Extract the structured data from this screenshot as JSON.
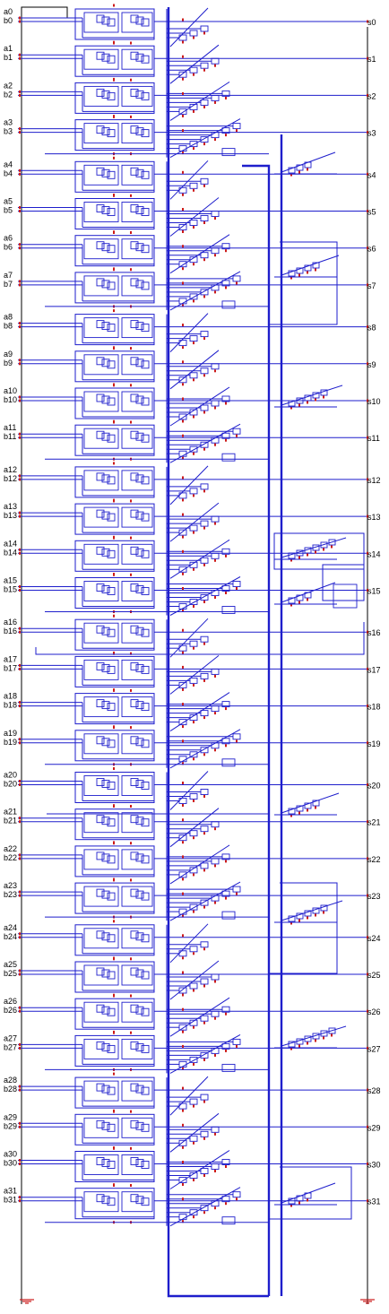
{
  "diagram": {
    "inputs_a": [
      "a0",
      "a1",
      "a2",
      "a3",
      "a4",
      "a5",
      "a6",
      "a7",
      "a8",
      "a9",
      "a10",
      "a11",
      "a12",
      "a13",
      "a14",
      "a15",
      "a16",
      "a17",
      "a18",
      "a19",
      "a20",
      "a21",
      "a22",
      "a23",
      "a24",
      "a25",
      "a26",
      "a27",
      "a28",
      "a29",
      "a30",
      "a31"
    ],
    "inputs_b": [
      "b0",
      "b1",
      "b2",
      "b3",
      "b4",
      "b5",
      "b6",
      "b7",
      "b8",
      "b9",
      "b10",
      "b11",
      "b12",
      "b13",
      "b14",
      "b15",
      "b16",
      "b17",
      "b18",
      "b19",
      "b20",
      "b21",
      "b22",
      "b23",
      "b24",
      "b25",
      "b26",
      "b27",
      "b28",
      "b29",
      "b30",
      "b31"
    ],
    "outputs_s": [
      "s0",
      "s1",
      "s2",
      "s3",
      "s4",
      "s5",
      "s6",
      "s7",
      "s8",
      "s9",
      "s10",
      "s11",
      "s12",
      "s13",
      "s14",
      "s15",
      "s16",
      "s17",
      "s18",
      "s19",
      "s20",
      "s21",
      "s22",
      "s23",
      "s24",
      "s25",
      "s26",
      "s27",
      "s28",
      "s29",
      "s30",
      "s31"
    ],
    "ground_symbols": [
      "ground-left",
      "ground-right"
    ],
    "colors": {
      "wire": "#1e1ecc",
      "pin": "#cc1a1a",
      "label": "#000000",
      "background": "#ffffff"
    }
  }
}
